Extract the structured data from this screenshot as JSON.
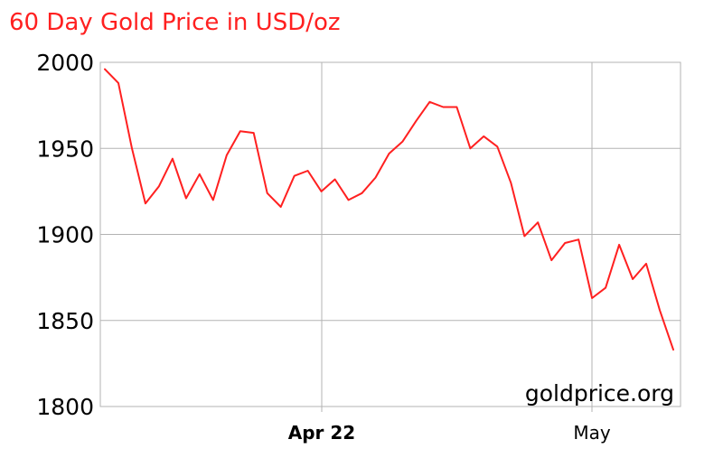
{
  "chart_data": {
    "type": "line",
    "title": "60 Day Gold Price in USD/oz",
    "xlabel": "",
    "ylabel": "",
    "ylim": [
      1800,
      2000
    ],
    "y_ticks": [
      "2000",
      "1950",
      "1900",
      "1850",
      "1800"
    ],
    "x_ticks": [
      {
        "label": "Apr 22",
        "bold": true
      },
      {
        "label": "May",
        "bold": false
      }
    ],
    "grid": true,
    "watermark": "goldprice.org",
    "line_color": "#ff2020",
    "series": [
      {
        "values": [
          1996,
          1988,
          1950,
          1918,
          1928,
          1944,
          1921,
          1935,
          1920,
          1946,
          1960,
          1959,
          1924,
          1916,
          1934,
          1937,
          1925,
          1932,
          1920,
          1924,
          1933,
          1947,
          1954,
          1966,
          1977,
          1974,
          1974,
          1950,
          1957,
          1951,
          1930,
          1899,
          1907,
          1885,
          1895,
          1897,
          1863,
          1869,
          1894,
          1874,
          1883,
          1856,
          1833
        ]
      }
    ]
  }
}
